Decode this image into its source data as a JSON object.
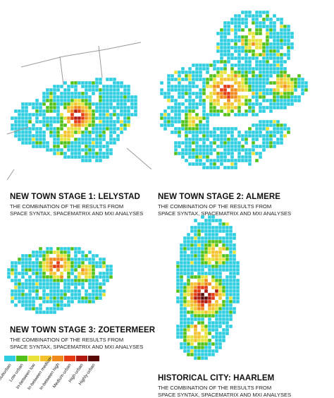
{
  "palette": {
    "suburban": "#2ecde0",
    "low_urban": "#52c21a",
    "in_between_low": "#e8e33a",
    "in_between_medium": "#f3c22e",
    "in_between_high": "#f08a1c",
    "medium_urban": "#e33a12",
    "high_urban": "#b01a10",
    "highly_urban": "#5a0a06",
    "road": "#9a9a9a"
  },
  "panels": [
    {
      "id": "lelystad",
      "title": "NEW TOWN STAGE 1: LELYSTAD",
      "subtitle_line1": "THE COMBINATION OF THE RESULTS FROM",
      "subtitle_line2": "SPACE SYNTAX, SPACEMATRIX AND MXI ANALYSES"
    },
    {
      "id": "almere",
      "title": "NEW TOWN STAGE 2: ALMERE",
      "subtitle_line1": "THE COMBINATION OF THE RESULTS FROM",
      "subtitle_line2": "SPACE SYNTAX, SPACEMATRIX AND MXI ANALYSES"
    },
    {
      "id": "zoetermeer",
      "title": "NEW TOWN STAGE 3: ZOETERMEER",
      "subtitle_line1": "THE COMBINATION OF THE RESULTS FROM",
      "subtitle_line2": "SPACE SYNTAX, SPACEMATRIX AND MXI ANALYSES"
    },
    {
      "id": "haarlem",
      "title": "HISTORICAL CITY: HAARLEM",
      "subtitle_line1": "THE COMBINATION OF THE RESULTS FROM",
      "subtitle_line2": "SPACE SYNTAX, SPACEMATRIX AND MXI ANALYSES"
    }
  ],
  "legend": {
    "items": [
      {
        "label": "Suburban",
        "color": "#2ecde0"
      },
      {
        "label": "Low-urban",
        "color": "#52c21a"
      },
      {
        "label": "In-between low",
        "color": "#e8e33a"
      },
      {
        "label": "In-between medium",
        "color": "#f3c22e"
      },
      {
        "label": "In-between high",
        "color": "#f08a1c"
      },
      {
        "label": "Medium-urban",
        "color": "#e33a12"
      },
      {
        "label": "High-urban",
        "color": "#b01a10"
      },
      {
        "label": "Highly-urban",
        "color": "#5a0a06"
      }
    ]
  }
}
